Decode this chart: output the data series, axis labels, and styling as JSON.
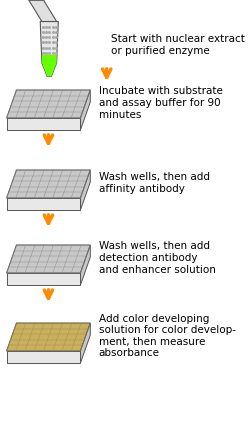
{
  "background_color": "#ffffff",
  "arrow_color": "#FF8C00",
  "plate_fill_colors": [
    "#d3d3d3",
    "#d3d3d3",
    "#d3d3d3",
    "#c8b87a"
  ],
  "plate_hatch_colors": [
    "#a0a0a0",
    "#a0a0a0",
    "#a0a0a0",
    "#b8a060"
  ],
  "tube_body_color": "#e0e0e0",
  "tube_liquid_color": "#66ff00",
  "tube_liquid_color2": "#33cc00",
  "step_labels": [
    "Start with nuclear extract\nor purified enzyme",
    "Incubate with substrate\nand assay buffer for 90\nminutes",
    "Wash wells, then add\naffinity antibody",
    "Wash wells, then add\ndetection antibody\nand enhancer solution",
    "Add color developing\nsolution for color develop-\nment, then measure\nabsorbance"
  ],
  "figsize": [
    2.5,
    4.35
  ],
  "dpi": 100
}
